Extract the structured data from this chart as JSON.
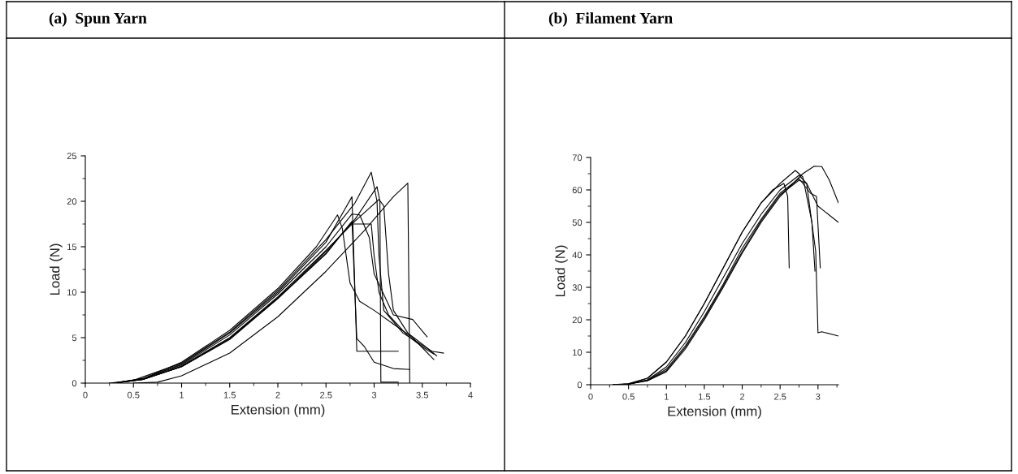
{
  "chart_data": [
    {
      "type": "line",
      "title": "(a)  Spun Yarn",
      "xlabel": "Extension (mm)",
      "ylabel": "Load (N)",
      "xlim": [
        0,
        4
      ],
      "ylim": [
        0,
        25
      ],
      "xticks": [
        0,
        0.5,
        1,
        1.5,
        2,
        2.5,
        3,
        3.5,
        4
      ],
      "yticks": [
        0,
        5,
        10,
        15,
        20,
        25
      ],
      "series": [
        {
          "color": "#000000",
          "x": [
            0.25,
            0.5,
            1,
            1.5,
            2,
            2.5,
            2.8,
            2.97,
            3.03,
            3.05,
            3.1,
            3.3,
            3.6,
            3.72
          ],
          "values": [
            0,
            0.3,
            2.2,
            5.6,
            10.2,
            15.8,
            19.8,
            23.2,
            20,
            14,
            8,
            5.5,
            3.5,
            3.3
          ]
        },
        {
          "color": "#000000",
          "x": [
            0.3,
            0.6,
            1,
            1.5,
            2,
            2.5,
            2.77,
            2.85,
            2.95,
            3.0,
            3.2,
            3.4,
            3.55
          ],
          "values": [
            0,
            0.5,
            2,
            5.3,
            9.8,
            15,
            18.6,
            18.5,
            16,
            12,
            7.5,
            7,
            5.1
          ]
        },
        {
          "color": "#000000",
          "x": [
            0.3,
            0.6,
            1,
            1.5,
            2,
            2.5,
            2.8,
            3.03,
            3.06,
            3.07,
            3.25
          ],
          "values": [
            0,
            0.4,
            1.8,
            4.8,
            9.3,
            14.5,
            18,
            21.6,
            20,
            0.1,
            0.1
          ]
        },
        {
          "color": "#000000",
          "x": [
            0.5,
            0.75,
            1,
            1.5,
            2,
            2.5,
            2.9,
            3.2,
            3.35,
            3.37
          ],
          "values": [
            0,
            0.1,
            0.8,
            3.3,
            7.3,
            12.3,
            16.8,
            20.5,
            22,
            0
          ]
        },
        {
          "color": "#000000",
          "x": [
            0.3,
            0.6,
            1,
            1.5,
            2,
            2.5,
            2.77,
            2.82,
            2.85,
            3.25
          ],
          "values": [
            0,
            0.5,
            2.1,
            5.5,
            10,
            15.5,
            20.5,
            3.5,
            3.5,
            3.5
          ]
        },
        {
          "color": "#000000",
          "x": [
            0.3,
            0.6,
            1,
            1.5,
            2,
            2.4,
            2.62,
            2.67,
            2.75,
            2.85,
            3.0,
            3.2,
            3.4,
            3.62
          ],
          "values": [
            0,
            0.5,
            2.3,
            5.8,
            10.4,
            15,
            18.5,
            17,
            11,
            9,
            8,
            6.5,
            5,
            2.6
          ]
        },
        {
          "color": "#000000",
          "x": [
            0.3,
            0.6,
            1,
            1.5,
            2,
            2.5,
            2.8,
            3.05,
            3.1,
            3.15,
            3.2,
            3.35,
            3.5,
            3.65
          ],
          "values": [
            0,
            0.4,
            1.9,
            5,
            9.5,
            14.6,
            17.8,
            20.2,
            19.5,
            12,
            8,
            5.5,
            4.3,
            3.0
          ]
        },
        {
          "color": "#000000",
          "x": [
            0.3,
            0.6,
            1,
            1.5,
            2,
            2.5,
            2.75,
            2.97,
            3.0,
            3.05,
            3.15,
            3.35,
            3.5,
            3.62
          ],
          "values": [
            0,
            0.4,
            1.8,
            4.9,
            9.4,
            14.3,
            17.5,
            17.5,
            14,
            10,
            7.5,
            5.2,
            4,
            3.2
          ]
        },
        {
          "color": "#000000",
          "x": [
            0.3,
            0.6,
            1,
            1.5,
            2,
            2.5,
            2.77,
            2.82,
            2.9,
            3.0,
            3.2,
            3.37
          ],
          "values": [
            0,
            0.4,
            1.8,
            4.9,
            9.3,
            14.2,
            17.8,
            4.9,
            4.0,
            2.3,
            1.6,
            1.5
          ]
        }
      ]
    },
    {
      "type": "line",
      "title": "(b)  Filament Yarn",
      "xlabel": "Extension (mm)",
      "ylabel": "Load (N)",
      "xlim": [
        0,
        3.27
      ],
      "ylim": [
        0,
        70
      ],
      "xticks": [
        0,
        0.5,
        1,
        1.5,
        2,
        2.5,
        3
      ],
      "yticks": [
        0,
        10,
        20,
        30,
        40,
        50,
        60,
        70
      ],
      "series": [
        {
          "color": "#000000",
          "x": [
            0.3,
            0.5,
            0.75,
            1,
            1.25,
            1.5,
            1.75,
            2,
            2.25,
            2.4,
            2.55,
            2.6,
            2.62
          ],
          "values": [
            0,
            0.3,
            2,
            7,
            15,
            25,
            36,
            47,
            56,
            60,
            62,
            58,
            36
          ]
        },
        {
          "color": "#000000",
          "x": [
            0.3,
            0.5,
            0.75,
            1,
            1.25,
            1.5,
            1.75,
            2,
            2.25,
            2.5,
            2.7,
            2.8,
            2.92,
            2.96
          ],
          "values": [
            0,
            0.3,
            2,
            7,
            15,
            25,
            36,
            47,
            56,
            62,
            66,
            64,
            50,
            35
          ]
        },
        {
          "color": "#000000",
          "x": [
            0.3,
            0.5,
            0.75,
            1,
            1.25,
            1.5,
            1.75,
            2,
            2.25,
            2.5,
            2.75,
            2.85,
            2.97,
            3.0,
            3.05,
            3.27
          ],
          "values": [
            0,
            0.2,
            1.5,
            5.5,
            13,
            22.5,
            33,
            43.5,
            52.5,
            60,
            64.5,
            62,
            41,
            16,
            16.3,
            15
          ]
        },
        {
          "color": "#000000",
          "x": [
            0.3,
            0.5,
            0.75,
            1,
            1.25,
            1.5,
            1.75,
            2,
            2.25,
            2.5,
            2.75,
            2.9,
            2.98,
            3.03
          ],
          "values": [
            0,
            0.2,
            1.4,
            4.8,
            12,
            21,
            31,
            42,
            51,
            59,
            63.5,
            59,
            58,
            36
          ]
        },
        {
          "color": "#000000",
          "x": [
            0.3,
            0.5,
            0.75,
            1,
            1.25,
            1.5,
            1.75,
            2,
            2.25,
            2.5,
            2.8,
            2.95,
            3.05,
            3.15,
            3.27
          ],
          "values": [
            0,
            0.2,
            1.2,
            4,
            11,
            20,
            30,
            40.5,
            50,
            58,
            65,
            67.3,
            67.2,
            63,
            56
          ]
        },
        {
          "color": "#000000",
          "x": [
            0.3,
            0.5,
            0.75,
            1,
            1.25,
            1.5,
            1.75,
            2,
            2.25,
            2.5,
            2.75,
            2.85,
            3.0,
            3.27
          ],
          "values": [
            0,
            0.2,
            1.3,
            4.3,
            11.5,
            20.5,
            30.5,
            41,
            50.5,
            58.5,
            63,
            62,
            55,
            50
          ]
        }
      ]
    }
  ]
}
